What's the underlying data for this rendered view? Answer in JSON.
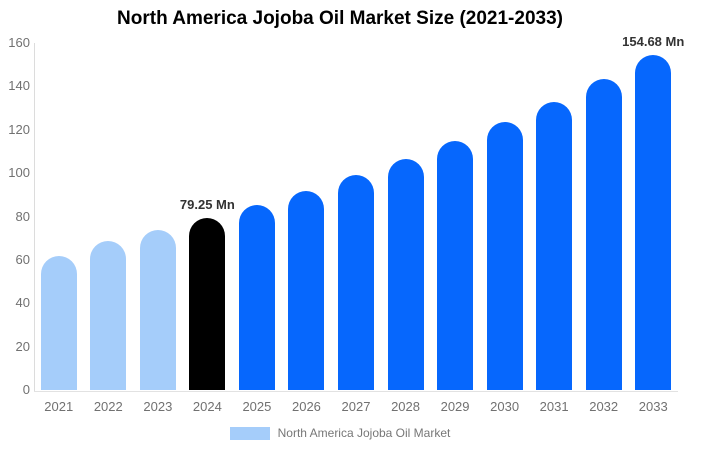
{
  "title": "North America Jojoba Oil Market Size (2021-2033)",
  "chart_data": {
    "type": "bar",
    "title": "North America Jojoba Oil Market Size (2021-2033)",
    "series_name": "North America Jojoba Oil Market",
    "categories": [
      "2021",
      "2022",
      "2023",
      "2024",
      "2025",
      "2026",
      "2027",
      "2028",
      "2029",
      "2030",
      "2031",
      "2032",
      "2033"
    ],
    "values": [
      62,
      68.6,
      73.8,
      79.25,
      85.4,
      91.9,
      99,
      106.6,
      114.8,
      123.5,
      133,
      143.3,
      154.68
    ],
    "unit": "Mn",
    "ylim": [
      0,
      160
    ],
    "yticks": [
      0,
      20,
      40,
      60,
      80,
      100,
      120,
      140,
      160
    ],
    "grid": false,
    "legend_position": "bottom",
    "bar_colors": [
      "#A5CDFA",
      "#A5CDFA",
      "#A5CDFA",
      "#000000",
      "#0667FD",
      "#0667FD",
      "#0667FD",
      "#0667FD",
      "#0667FD",
      "#0667FD",
      "#0667FD",
      "#0667FD",
      "#0667FD"
    ],
    "data_labels": [
      {
        "index": 3,
        "text": "79.25 Mn"
      },
      {
        "index": 12,
        "text": "154.68 Mn"
      }
    ]
  },
  "legend": {
    "swatch_color": "#A5CDFA",
    "label": "North America Jojoba Oil Market"
  },
  "colors": {
    "historical_bar": "#A5CDFA",
    "current_year_bar": "#000000",
    "forecast_bar": "#0667FD",
    "axis_line": "#DCDCDC",
    "tick_text": "#717171",
    "annotation_text": "#333333"
  }
}
